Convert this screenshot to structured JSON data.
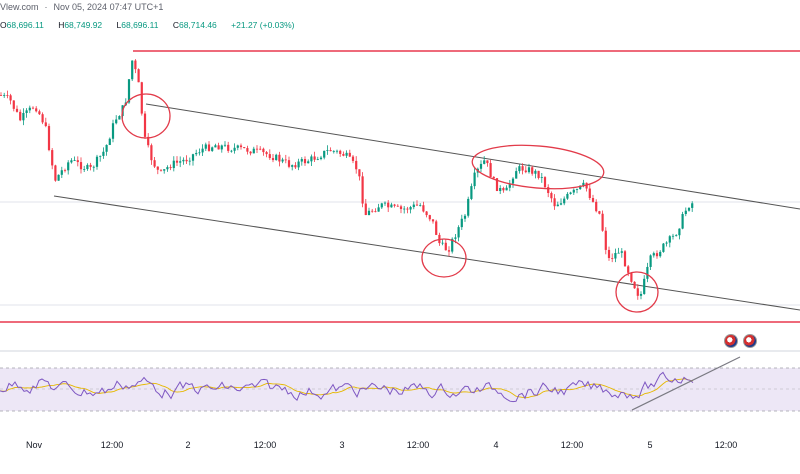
{
  "header": {
    "source": "Vlew.com",
    "date": "Nov 05, 2024",
    "time": "07:47",
    "tz": "UTC+1"
  },
  "ohlc": {
    "o_label": "O",
    "o": "68,696.11",
    "h_label": "H",
    "h": "68,749.92",
    "l_label": "L",
    "l": "68,696.11",
    "c_label": "C",
    "c": "68,714.46",
    "change": "+21.27 (+0.03%)"
  },
  "colors": {
    "up": "#089981",
    "down": "#f23645",
    "level_line": "#e8384f",
    "channel": "#555555",
    "circle": "#e23b4a",
    "rsi_line": "#7e57c2",
    "rsi_ma": "#e6b800",
    "rsi_band": "#ede7f6"
  },
  "chart_data": {
    "type": "candlestick",
    "x_ticks": [
      "Nov",
      "12:00",
      "2",
      "12:00",
      "3",
      "12:00",
      "4",
      "12:00",
      "5",
      "12:00"
    ],
    "price_levels": {
      "resistance": 73600,
      "support": 66850
    },
    "price_range": [
      66300,
      74400
    ],
    "channel": {
      "upper": [
        [
          0.145,
          72700
        ],
        [
          1.0,
          70400
        ]
      ],
      "lower": [
        [
          0.05,
          70000
        ],
        [
          1.0,
          67350
        ]
      ]
    },
    "highlights": [
      "channel-top-touch",
      "swing-low-3",
      "double-top-4",
      "swing-low-5"
    ],
    "rsi": {
      "range": [
        0,
        100
      ],
      "upper": 70,
      "lower": 30,
      "mid": 50
    }
  }
}
